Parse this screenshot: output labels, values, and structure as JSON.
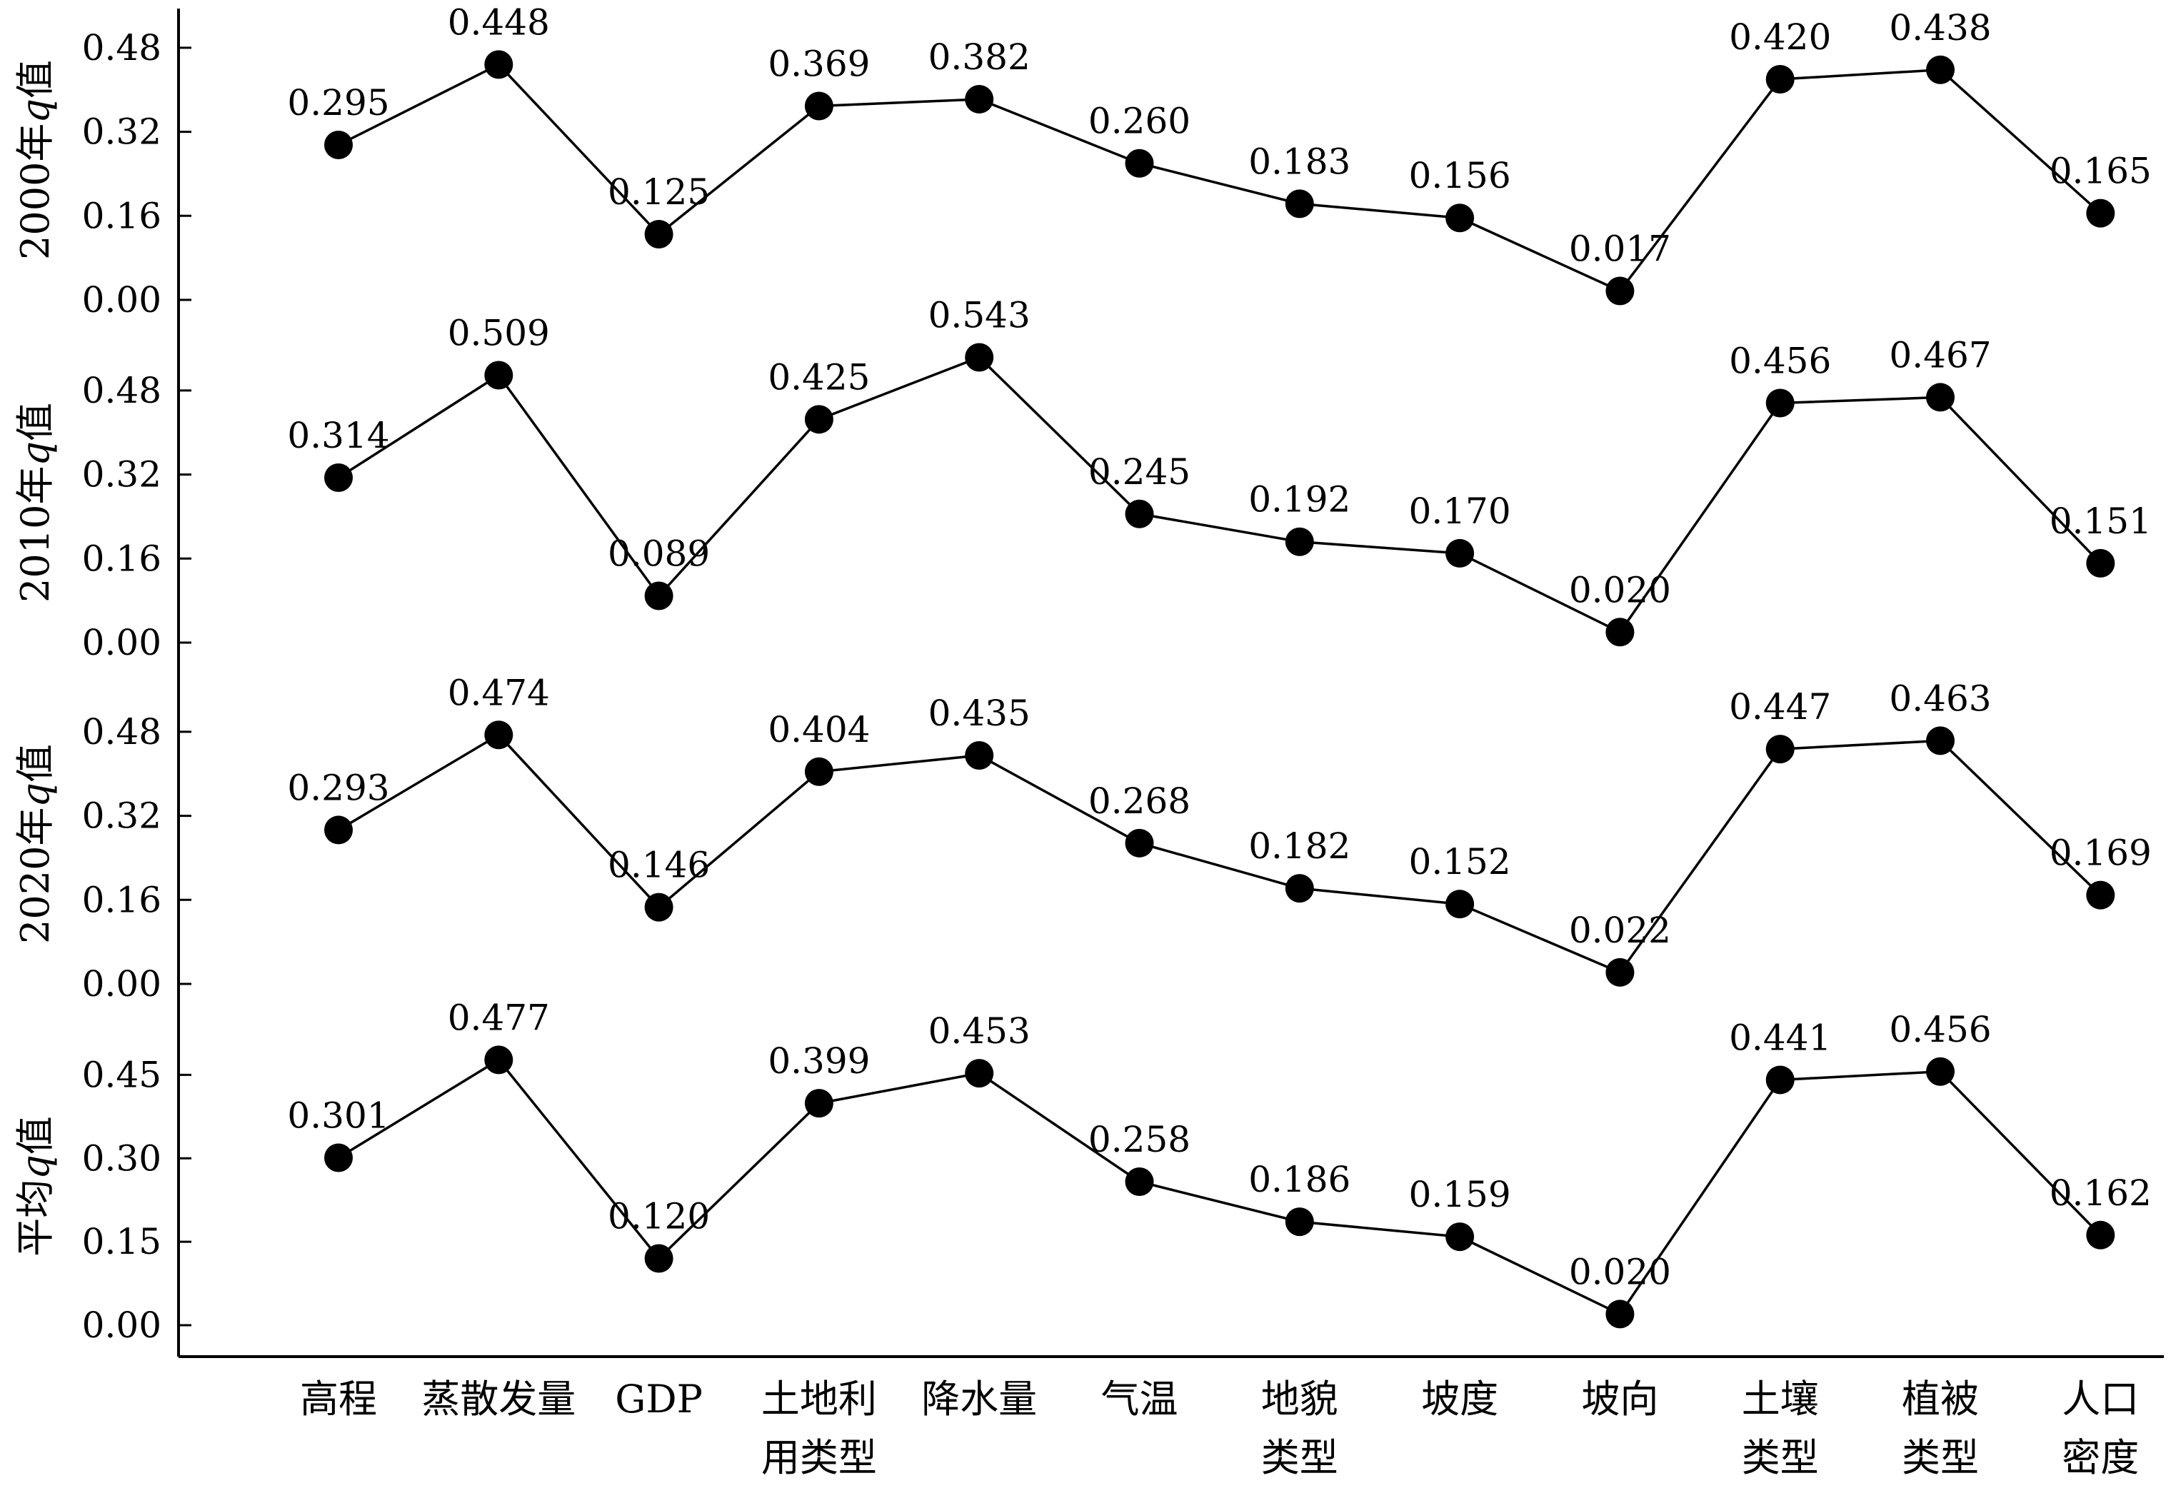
{
  "chart_data": {
    "type": "line",
    "categories": [
      [
        "高程"
      ],
      [
        "蒸散发量"
      ],
      [
        "GDP"
      ],
      [
        "土地利",
        "用类型"
      ],
      [
        "降水量"
      ],
      [
        "气温"
      ],
      [
        "地貌",
        "类型"
      ],
      [
        "坡度"
      ],
      [
        "坡向"
      ],
      [
        "土壤",
        "类型"
      ],
      [
        "植被",
        "类型"
      ],
      [
        "人口",
        "密度"
      ]
    ],
    "panels": [
      {
        "ylabel": "2000年q值",
        "ylim": [
          0,
          0.56
        ],
        "yticks": [
          "0.00",
          "0.16",
          "0.32",
          "0.48"
        ],
        "values": [
          0.295,
          0.448,
          0.125,
          0.369,
          0.382,
          0.26,
          0.183,
          0.156,
          0.017,
          0.42,
          0.438,
          0.165
        ],
        "labels": [
          "0.295",
          "0.448",
          "0.125",
          "0.369",
          "0.382",
          "0.260",
          "0.183",
          "0.156",
          "0.017",
          "0.420",
          "0.438",
          "0.165"
        ]
      },
      {
        "ylabel": "2010年q值",
        "ylim": [
          0,
          0.56
        ],
        "yticks": [
          "0.00",
          "0.16",
          "0.32",
          "0.48"
        ],
        "values": [
          0.314,
          0.509,
          0.089,
          0.425,
          0.543,
          0.245,
          0.192,
          0.17,
          0.02,
          0.456,
          0.467,
          0.151
        ],
        "labels": [
          "0.314",
          "0.509",
          "0.089",
          "0.425",
          "0.543",
          "0.245",
          "0.192",
          "0.170",
          "0.020",
          "0.456",
          "0.467",
          "0.151"
        ]
      },
      {
        "ylabel": "2020年q值",
        "ylim": [
          0,
          0.56
        ],
        "yticks": [
          "0.00",
          "0.16",
          "0.32",
          "0.48"
        ],
        "values": [
          0.293,
          0.474,
          0.146,
          0.404,
          0.435,
          0.268,
          0.182,
          0.152,
          0.022,
          0.447,
          0.463,
          0.169
        ],
        "labels": [
          "0.293",
          "0.474",
          "0.146",
          "0.404",
          "0.435",
          "0.268",
          "0.182",
          "0.152",
          "0.022",
          "0.447",
          "0.463",
          "0.169"
        ]
      },
      {
        "ylabel": "平均q值",
        "ylim": [
          0,
          0.525
        ],
        "yticks": [
          "0.00",
          "0.15",
          "0.30",
          "0.45"
        ],
        "values": [
          0.301,
          0.477,
          0.12,
          0.399,
          0.453,
          0.258,
          0.186,
          0.159,
          0.02,
          0.441,
          0.456,
          0.162
        ],
        "labels": [
          "0.301",
          "0.477",
          "0.120",
          "0.399",
          "0.453",
          "0.258",
          "0.186",
          "0.159",
          "0.020",
          "0.441",
          "0.456",
          "0.162"
        ]
      }
    ],
    "line_color": "#000000",
    "marker_color": "#000000",
    "grid": false,
    "legend": "none"
  }
}
